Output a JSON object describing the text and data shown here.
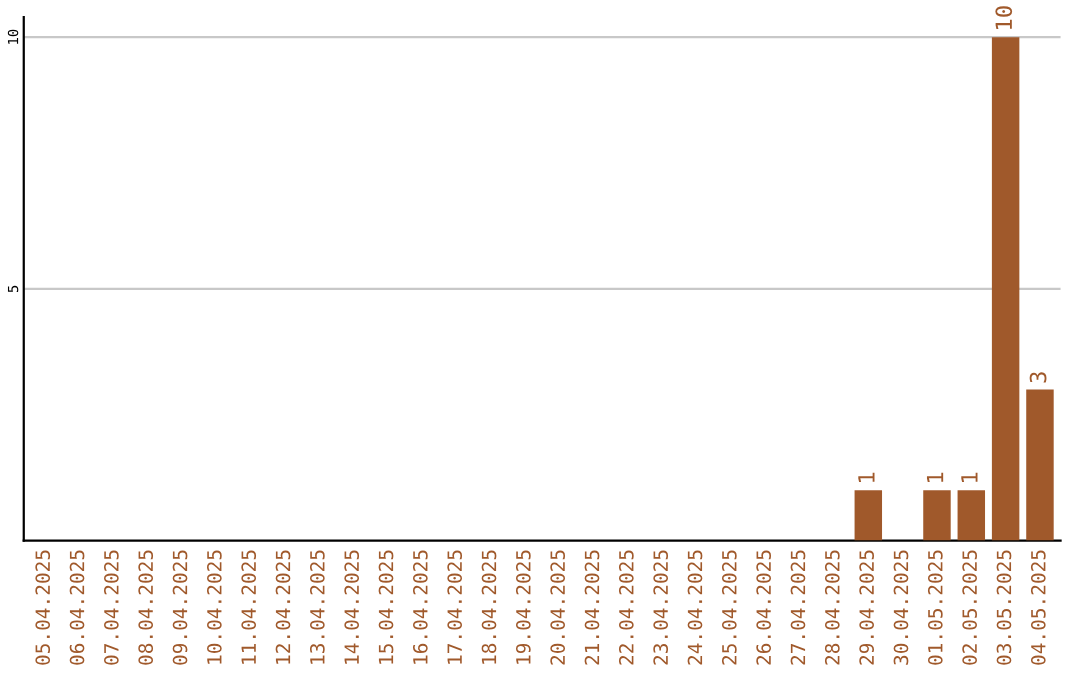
{
  "chart_data": {
    "type": "bar",
    "categories": [
      "05.04.2025",
      "06.04.2025",
      "07.04.2025",
      "08.04.2025",
      "09.04.2025",
      "10.04.2025",
      "11.04.2025",
      "12.04.2025",
      "13.04.2025",
      "14.04.2025",
      "15.04.2025",
      "16.04.2025",
      "17.04.2025",
      "18.04.2025",
      "19.04.2025",
      "20.04.2025",
      "21.04.2025",
      "22.04.2025",
      "23.04.2025",
      "24.04.2025",
      "25.04.2025",
      "26.04.2025",
      "27.04.2025",
      "28.04.2025",
      "29.04.2025",
      "30.04.2025",
      "01.05.2025",
      "02.05.2025",
      "03.05.2025",
      "04.05.2025"
    ],
    "values": [
      0,
      0,
      0,
      0,
      0,
      0,
      0,
      0,
      0,
      0,
      0,
      0,
      0,
      0,
      0,
      0,
      0,
      0,
      0,
      0,
      0,
      0,
      0,
      0,
      1,
      0,
      1,
      1,
      10,
      3
    ],
    "value_labels": [
      null,
      null,
      null,
      null,
      null,
      null,
      null,
      null,
      null,
      null,
      null,
      null,
      null,
      null,
      null,
      null,
      null,
      null,
      null,
      null,
      null,
      null,
      null,
      null,
      "1",
      null,
      "1",
      "1",
      "10",
      "3"
    ],
    "color": "#a0592b",
    "ylim": [
      0,
      10.4
    ],
    "yticks": [
      5,
      10
    ],
    "grid": "y"
  }
}
